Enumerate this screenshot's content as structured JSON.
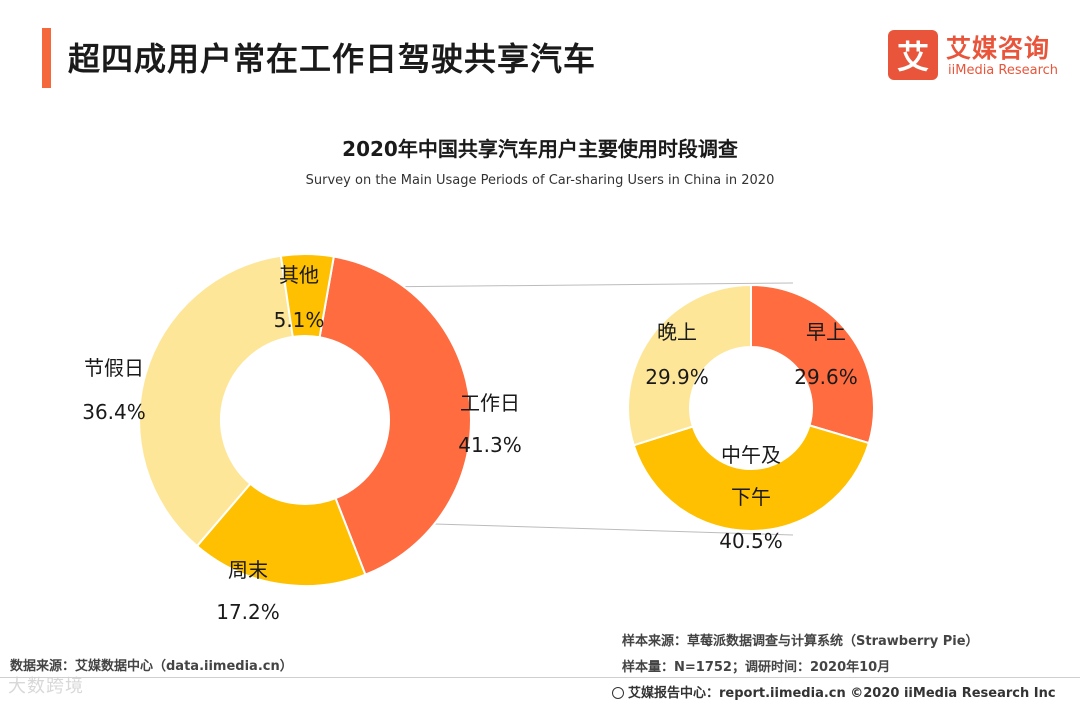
{
  "header": {
    "title": "超四成用户常在工作日驾驶共享汽车",
    "accent_color": "#f4683b"
  },
  "logo": {
    "icon_char": "艾",
    "name_cn": "艾媒咨询",
    "name_en": "iiMedia Research",
    "color": "#e8553a"
  },
  "chart_data": [
    {
      "type": "pie",
      "variant": "donut",
      "title": "2020年中国共享汽车用户主要使用时段调查",
      "subtitle": "Survey on the Main Usage Periods of Car-sharing Users in China in 2020",
      "categories": [
        "工作日",
        "周末",
        "节假日",
        "其他"
      ],
      "values": [
        41.3,
        17.2,
        36.4,
        5.1
      ],
      "labels": [
        "41.3%",
        "17.2%",
        "36.4%",
        "5.1%"
      ],
      "colors": [
        "#fe6c40",
        "#fec000",
        "#fee699",
        "#fec000"
      ],
      "exploded_category": "工作日"
    },
    {
      "type": "pie",
      "variant": "donut",
      "parent_category": "工作日",
      "categories": [
        "早上",
        "中午及下午",
        "晚上"
      ],
      "label_lines": [
        [
          "早上"
        ],
        [
          "中午及",
          "下午"
        ],
        [
          "晚上"
        ]
      ],
      "values": [
        29.6,
        40.5,
        29.9
      ],
      "labels": [
        "29.6%",
        "40.5%",
        "29.9%"
      ],
      "colors": [
        "#fe6c40",
        "#fec000",
        "#fee699"
      ]
    }
  ],
  "sources": {
    "data_source": "数据来源：艾媒数据中心（data.iimedia.cn）",
    "sample_source": "样本来源：草莓派数据调查与计算系统（Strawberry Pie）",
    "sample_size": "样本量：N=1752；调研时间：2020年10月",
    "footer": "艾媒报告中心：report.iimedia.cn ©2020  iiMedia Research  Inc",
    "watermark": "大数跨境"
  }
}
